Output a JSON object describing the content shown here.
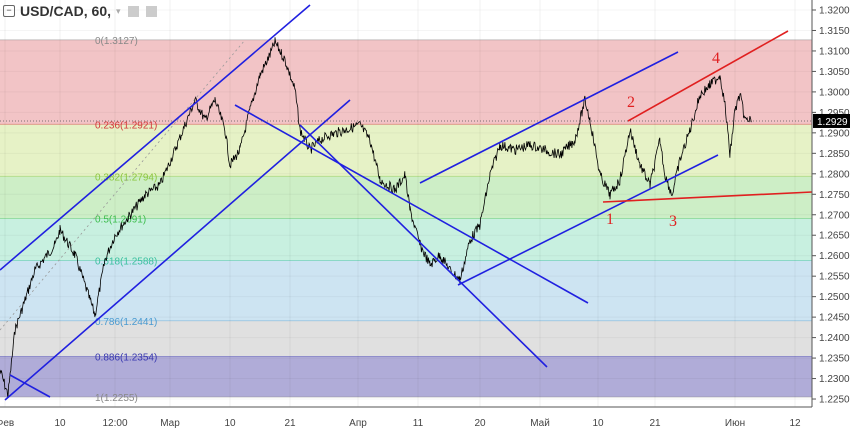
{
  "header": {
    "symbol": "USD/CAD, 60,",
    "dropdown_icon": "caret-down-icon",
    "icons": [
      "eye-icon",
      "gear-icon"
    ]
  },
  "chart_data": {
    "type": "line",
    "title": "",
    "ylim": [
      1.2205,
      1.3225
    ],
    "y_ticks": [
      "1.3200",
      "1.3150",
      "1.3100",
      "1.3050",
      "1.3000",
      "1.2950",
      "1.2900",
      "1.2850",
      "1.2800",
      "1.2750",
      "1.2700",
      "1.2650",
      "1.2600",
      "1.2550",
      "1.2500",
      "1.2450",
      "1.2400",
      "1.2350",
      "1.2300",
      "1.2250"
    ],
    "x_ticks": [
      "Фев",
      "10",
      "12:00",
      "Мар",
      "10",
      "21",
      "Апр",
      "11",
      "20",
      "Май",
      "10",
      "21",
      "Июн",
      "12"
    ],
    "last_price": "1.2929",
    "fib_levels": [
      {
        "label": "0(1.3127)",
        "price": 1.3127,
        "color": "#f2c4c6",
        "text": "#888888"
      },
      {
        "label": "0.236(1.2921)",
        "price": 1.2921,
        "color": "#e6f2c6",
        "text": "#d33a3a"
      },
      {
        "label": "0.382(1.2794)",
        "price": 1.2794,
        "color": "#cdeec6",
        "text": "#8cc63f"
      },
      {
        "label": "0.5(1.2691)",
        "price": 1.2691,
        "color": "#c8f0e0",
        "text": "#3cbc4c"
      },
      {
        "label": "0.618(1.2588)",
        "price": 1.2588,
        "color": "#cde4f2",
        "text": "#3cc0a0"
      },
      {
        "label": "0.786(1.2441)",
        "price": 1.2441,
        "color": "#e0e0e0",
        "text": "#4a9ad0"
      },
      {
        "label": "0.886(1.2354)",
        "price": 1.2354,
        "color": "#b0acd8",
        "text": "#3a3ab0"
      },
      {
        "label": "1(1.2255)",
        "price": 1.2255,
        "color": "#ffffff",
        "text": "#888888"
      }
    ],
    "wave_labels": [
      "1",
      "2",
      "3",
      "4"
    ],
    "colors": {
      "price": "#000000",
      "channels": "#2020e0",
      "wave_lines": "#e02020"
    }
  }
}
